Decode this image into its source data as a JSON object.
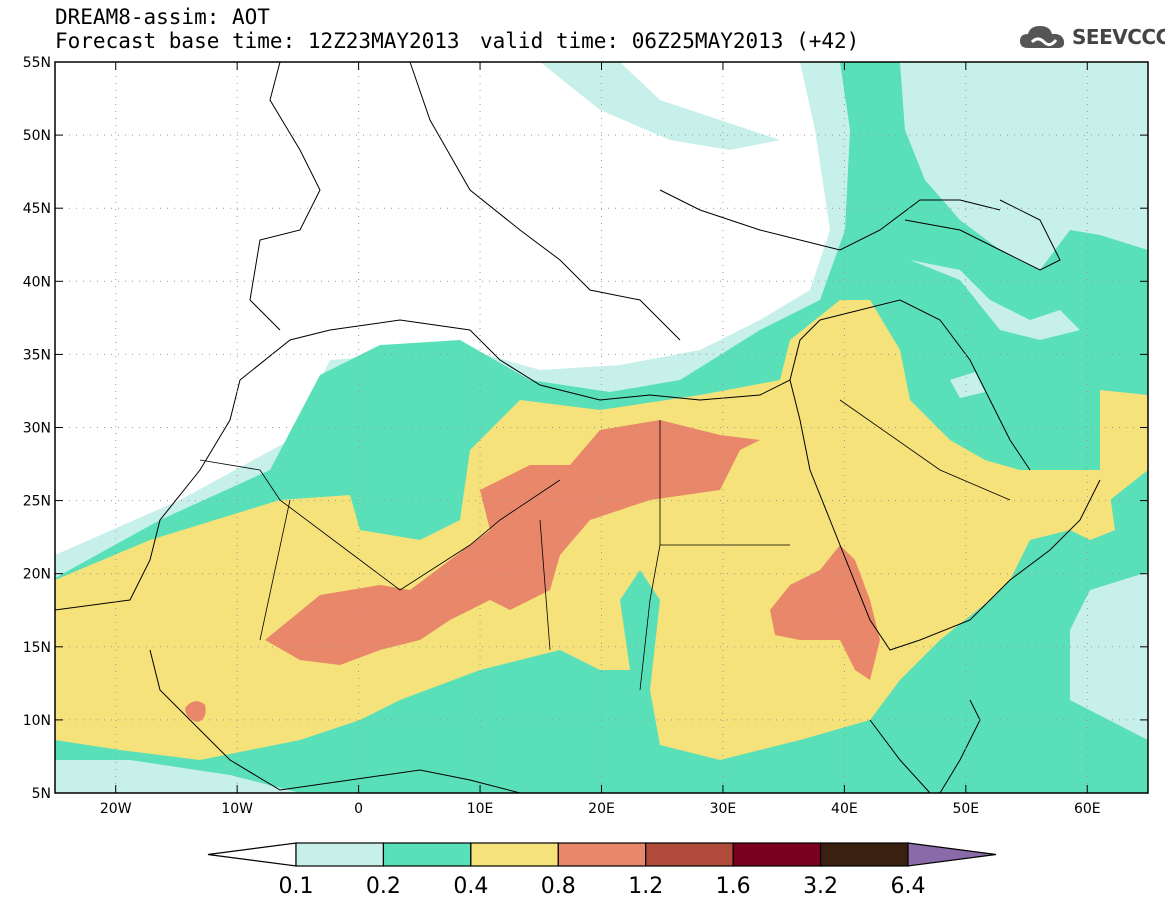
{
  "header": {
    "title": "DREAM8-assim: AOT",
    "base_time": "Forecast base time: 12Z23MAY2013",
    "valid_time": "valid time: 06Z25MAY2013 (+42)",
    "logo_text": "SEEVCCC"
  },
  "map": {
    "lon_range": [
      -25,
      65
    ],
    "lat_range": [
      5,
      55
    ],
    "lat_ticks": [
      {
        "value": 55,
        "label": "55N"
      },
      {
        "value": 50,
        "label": "50N"
      },
      {
        "value": 45,
        "label": "45N"
      },
      {
        "value": 40,
        "label": "40N"
      },
      {
        "value": 35,
        "label": "35N"
      },
      {
        "value": 30,
        "label": "30N"
      },
      {
        "value": 25,
        "label": "25N"
      },
      {
        "value": 20,
        "label": "20N"
      },
      {
        "value": 15,
        "label": "15N"
      },
      {
        "value": 10,
        "label": "10N"
      },
      {
        "value": 5,
        "label": "5N"
      }
    ],
    "lon_ticks": [
      {
        "value": -20,
        "label": "20W"
      },
      {
        "value": -10,
        "label": "10W"
      },
      {
        "value": 0,
        "label": "0"
      },
      {
        "value": 10,
        "label": "10E"
      },
      {
        "value": 20,
        "label": "20E"
      },
      {
        "value": 30,
        "label": "30E"
      },
      {
        "value": 40,
        "label": "40E"
      },
      {
        "value": 50,
        "label": "50E"
      },
      {
        "value": 60,
        "label": "60E"
      }
    ],
    "grid": true
  },
  "colorbar": {
    "labels": [
      "0.1",
      "0.2",
      "0.4",
      "0.8",
      "1.2",
      "1.6",
      "3.2",
      "6.4"
    ],
    "colors": [
      "#ffffff",
      "#c8f0ea",
      "#5ae0b8",
      "#f5e27a",
      "#e8876a",
      "#b04a3a",
      "#7a0020",
      "#3a2010",
      "#8a6aa8"
    ]
  },
  "colors": {
    "class_01_02": "#c8f0ea",
    "class_02_04": "#5ae0b8",
    "class_04_08": "#f5e27a",
    "class_08_12": "#e8876a"
  }
}
